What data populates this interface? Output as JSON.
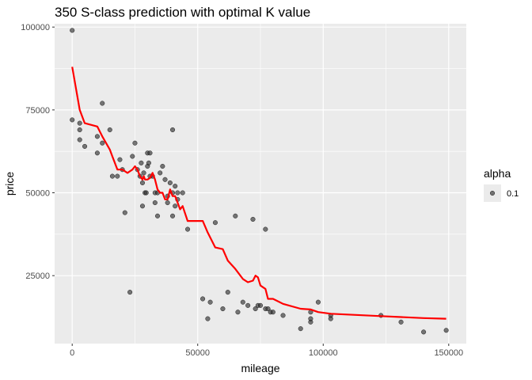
{
  "chart_data": {
    "type": "scatter",
    "title": "350 S-class prediction with optimal K value",
    "xlabel": "mileage",
    "ylabel": "price",
    "xlim": [
      -7000,
      157000
    ],
    "ylim": [
      4500,
      101000
    ],
    "x_ticks": [
      0,
      50000,
      100000,
      150000
    ],
    "x_tick_labels": [
      "0",
      "50000",
      "100000",
      "150000"
    ],
    "y_ticks": [
      25000,
      50000,
      75000,
      100000
    ],
    "y_tick_labels": [
      "25000",
      "50000",
      "75000",
      "100000"
    ],
    "grid": true,
    "legend": {
      "title": "alpha",
      "label": "0.1",
      "placement": "right"
    },
    "points_color": "#333333",
    "line_color": "#ff0000",
    "panel_color": "#ebebeb",
    "points": [
      [
        0,
        99000
      ],
      [
        0,
        72000
      ],
      [
        3000,
        71000
      ],
      [
        3000,
        69000
      ],
      [
        3000,
        66000
      ],
      [
        5000,
        64000
      ],
      [
        10000,
        67000
      ],
      [
        10000,
        62000
      ],
      [
        12000,
        65000
      ],
      [
        12000,
        77000
      ],
      [
        15000,
        69000
      ],
      [
        16000,
        55000
      ],
      [
        18000,
        55000
      ],
      [
        20000,
        57000
      ],
      [
        19000,
        60000
      ],
      [
        21000,
        44000
      ],
      [
        23000,
        20000
      ],
      [
        24000,
        61000
      ],
      [
        25000,
        65000
      ],
      [
        26000,
        57000
      ],
      [
        27000,
        55000
      ],
      [
        27500,
        59000
      ],
      [
        28000,
        53000
      ],
      [
        28500,
        56000
      ],
      [
        29000,
        50000
      ],
      [
        28000,
        46000
      ],
      [
        29500,
        50000
      ],
      [
        30000,
        58000
      ],
      [
        30000,
        62000
      ],
      [
        31000,
        62000
      ],
      [
        30500,
        59000
      ],
      [
        31000,
        55000
      ],
      [
        32000,
        55000
      ],
      [
        33000,
        50000
      ],
      [
        33000,
        47000
      ],
      [
        34000,
        43000
      ],
      [
        34000,
        50000
      ],
      [
        35000,
        56000
      ],
      [
        36000,
        58000
      ],
      [
        37000,
        54000
      ],
      [
        38000,
        49000
      ],
      [
        38000,
        47000
      ],
      [
        39000,
        53000
      ],
      [
        40000,
        69000
      ],
      [
        40000,
        50000
      ],
      [
        40000,
        43000
      ],
      [
        41000,
        52000
      ],
      [
        41000,
        46000
      ],
      [
        42000,
        48000
      ],
      [
        42000,
        50000
      ],
      [
        44000,
        50000
      ],
      [
        46000,
        39000
      ],
      [
        52000,
        18000
      ],
      [
        54000,
        12000
      ],
      [
        55000,
        17000
      ],
      [
        57000,
        41000
      ],
      [
        60000,
        15000
      ],
      [
        62000,
        20000
      ],
      [
        65000,
        43000
      ],
      [
        66000,
        14000
      ],
      [
        68000,
        17000
      ],
      [
        70000,
        16000
      ],
      [
        72000,
        42000
      ],
      [
        73000,
        15000
      ],
      [
        74000,
        16000
      ],
      [
        75000,
        16000
      ],
      [
        77000,
        15000
      ],
      [
        77000,
        39000
      ],
      [
        78000,
        15000
      ],
      [
        79000,
        14000
      ],
      [
        80000,
        14000
      ],
      [
        84000,
        13000
      ],
      [
        91000,
        9000
      ],
      [
        95000,
        14000
      ],
      [
        95000,
        11000
      ],
      [
        95000,
        12000
      ],
      [
        98000,
        17000
      ],
      [
        103000,
        13000
      ],
      [
        103000,
        12000
      ],
      [
        123000,
        13000
      ],
      [
        131000,
        11000
      ],
      [
        140000,
        8000
      ],
      [
        149000,
        8500
      ]
    ],
    "prediction_line": [
      [
        0,
        88000
      ],
      [
        3000,
        75000
      ],
      [
        5000,
        71000
      ],
      [
        10000,
        70000
      ],
      [
        12000,
        67000
      ],
      [
        15000,
        63000
      ],
      [
        16000,
        61000
      ],
      [
        18000,
        57000
      ],
      [
        20000,
        57000
      ],
      [
        22000,
        56000
      ],
      [
        24000,
        57000
      ],
      [
        25000,
        58000
      ],
      [
        26000,
        57000
      ],
      [
        27000,
        55000
      ],
      [
        28000,
        54000
      ],
      [
        28500,
        55000
      ],
      [
        29000,
        54000
      ],
      [
        30000,
        54000
      ],
      [
        31000,
        54500
      ],
      [
        32000,
        56000
      ],
      [
        33000,
        54000
      ],
      [
        34000,
        51000
      ],
      [
        35000,
        50000
      ],
      [
        36000,
        50000
      ],
      [
        37000,
        48000
      ],
      [
        38000,
        48000
      ],
      [
        39000,
        51000
      ],
      [
        40000,
        49000
      ],
      [
        41000,
        49000
      ],
      [
        42000,
        47000
      ],
      [
        43000,
        45000
      ],
      [
        44000,
        46000
      ],
      [
        46000,
        41500
      ],
      [
        52000,
        41500
      ],
      [
        54000,
        38000
      ],
      [
        57000,
        33500
      ],
      [
        60000,
        33000
      ],
      [
        62000,
        29500
      ],
      [
        65000,
        27000
      ],
      [
        68000,
        24000
      ],
      [
        70000,
        23000
      ],
      [
        72000,
        23500
      ],
      [
        73000,
        25000
      ],
      [
        74000,
        24500
      ],
      [
        75000,
        22000
      ],
      [
        77000,
        21000
      ],
      [
        78000,
        18000
      ],
      [
        80000,
        18000
      ],
      [
        84000,
        16500
      ],
      [
        91000,
        15000
      ],
      [
        95000,
        14800
      ],
      [
        98000,
        14000
      ],
      [
        103000,
        13500
      ],
      [
        123000,
        12800
      ],
      [
        131000,
        12500
      ],
      [
        140000,
        12200
      ],
      [
        149000,
        12000
      ]
    ]
  }
}
